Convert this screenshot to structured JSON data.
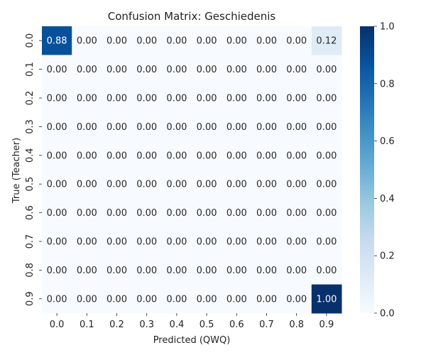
{
  "chart_data": {
    "type": "heatmap",
    "title": "Confusion Matrix: Geschiedenis",
    "xlabel": "Predicted (QWQ)",
    "ylabel": "True (Teacher)",
    "x_categories": [
      "0.0",
      "0.1",
      "0.2",
      "0.3",
      "0.4",
      "0.5",
      "0.6",
      "0.7",
      "0.8",
      "0.9"
    ],
    "y_categories": [
      "0.0",
      "0.1",
      "0.2",
      "0.3",
      "0.4",
      "0.5",
      "0.6",
      "0.7",
      "0.8",
      "0.9"
    ],
    "values": [
      [
        0.88,
        0,
        0,
        0,
        0,
        0,
        0,
        0,
        0,
        0.12
      ],
      [
        0,
        0,
        0,
        0,
        0,
        0,
        0,
        0,
        0,
        0
      ],
      [
        0,
        0,
        0,
        0,
        0,
        0,
        0,
        0,
        0,
        0
      ],
      [
        0,
        0,
        0,
        0,
        0,
        0,
        0,
        0,
        0,
        0
      ],
      [
        0,
        0,
        0,
        0,
        0,
        0,
        0,
        0,
        0,
        0
      ],
      [
        0,
        0,
        0,
        0,
        0,
        0,
        0,
        0,
        0,
        0
      ],
      [
        0,
        0,
        0,
        0,
        0,
        0,
        0,
        0,
        0,
        0
      ],
      [
        0,
        0,
        0,
        0,
        0,
        0,
        0,
        0,
        0,
        0
      ],
      [
        0,
        0,
        0,
        0,
        0,
        0,
        0,
        0,
        0,
        0
      ],
      [
        0,
        0,
        0,
        0,
        0,
        0,
        0,
        0,
        0,
        1.0
      ]
    ],
    "value_format_decimals": 2,
    "colorbar": {
      "range": [
        0,
        1
      ],
      "ticks": [
        "0.0",
        "0.2",
        "0.4",
        "0.6",
        "0.8",
        "1.0"
      ],
      "colormap": "Blues",
      "color_low": "#f7fbff",
      "color_high": "#08306b"
    },
    "grid": false,
    "legend": "colorbar-right"
  }
}
